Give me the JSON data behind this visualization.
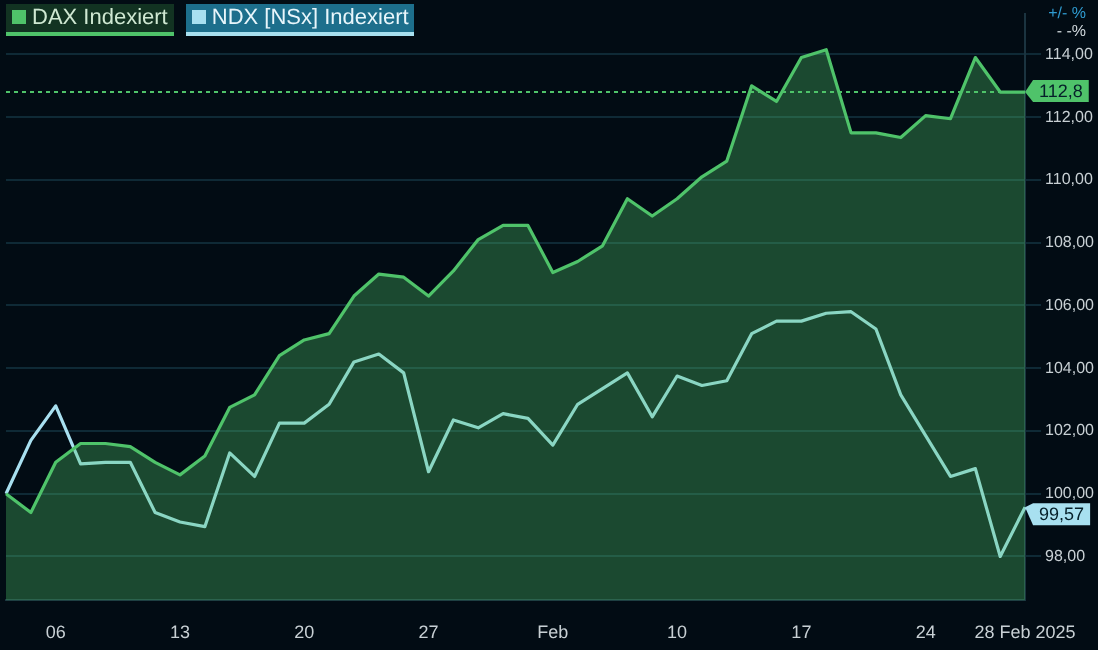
{
  "chart_data": {
    "type": "area",
    "categories": [
      null,
      null,
      "06",
      null,
      null,
      null,
      null,
      "13",
      null,
      null,
      null,
      null,
      "20",
      null,
      null,
      null,
      null,
      "27",
      null,
      null,
      null,
      null,
      "Feb",
      null,
      null,
      null,
      null,
      "10",
      null,
      null,
      null,
      null,
      "17",
      null,
      null,
      null,
      null,
      "24",
      null,
      null,
      null,
      "28 Feb 2025"
    ],
    "series": [
      {
        "name": "DAX  Indexiert",
        "type": "area",
        "color": "#4fc36a",
        "values": [
          100.0,
          99.4,
          101.0,
          101.6,
          101.6,
          101.5,
          101.0,
          100.6,
          101.2,
          102.75,
          103.15,
          104.4,
          104.9,
          105.1,
          106.3,
          107.0,
          106.9,
          106.3,
          107.1,
          108.1,
          108.55,
          108.55,
          107.05,
          107.4,
          107.9,
          109.4,
          108.85,
          109.4,
          110.1,
          110.6,
          113.0,
          112.5,
          113.9,
          114.15,
          111.5,
          111.5,
          111.35,
          112.05,
          111.95,
          113.9,
          112.8,
          112.8
        ],
        "value_labels": [
          null,
          null,
          null,
          null,
          null,
          null,
          null,
          null,
          null,
          null,
          null,
          null,
          null,
          null,
          null,
          null,
          null,
          null,
          null,
          null,
          null,
          null,
          null,
          null,
          null,
          null,
          null,
          null,
          null,
          null,
          null,
          null,
          null,
          null,
          null,
          null,
          null,
          null,
          null,
          null,
          null,
          "112,8"
        ]
      },
      {
        "name": "NDX [NSx] Indexiert",
        "type": "line",
        "color": "#a8e0f0",
        "values": [
          100.0,
          101.7,
          102.8,
          100.95,
          101.0,
          101.0,
          99.4,
          99.1,
          98.95,
          101.3,
          100.55,
          102.25,
          102.25,
          102.85,
          104.2,
          104.45,
          103.85,
          100.7,
          102.35,
          102.1,
          102.55,
          102.4,
          101.55,
          102.85,
          103.35,
          103.85,
          102.45,
          103.75,
          103.45,
          103.6,
          105.1,
          105.5,
          105.5,
          105.75,
          105.8,
          105.25,
          103.15,
          101.85,
          100.55,
          100.8,
          98.0,
          99.57
        ],
        "value_labels": [
          null,
          null,
          null,
          null,
          null,
          null,
          null,
          null,
          null,
          null,
          null,
          null,
          null,
          null,
          null,
          null,
          null,
          null,
          null,
          null,
          null,
          null,
          null,
          null,
          null,
          null,
          null,
          null,
          null,
          null,
          null,
          null,
          null,
          null,
          null,
          null,
          null,
          null,
          null,
          null,
          null,
          "99,57"
        ]
      }
    ],
    "ylim": [
      96.6,
      115.3
    ],
    "yticks": [
      {
        "value": 98,
        "label": "98,00"
      },
      {
        "value": 100,
        "label": "100,00"
      },
      {
        "value": 102,
        "label": "102,00"
      },
      {
        "value": 104,
        "label": "104,00"
      },
      {
        "value": 106,
        "label": "106,00"
      },
      {
        "value": 108,
        "label": "108,00"
      },
      {
        "value": 110,
        "label": "110,00"
      },
      {
        "value": 112,
        "label": "112,00"
      },
      {
        "value": 114,
        "label": "114,00"
      }
    ],
    "ref_lines": [
      {
        "axis": "y",
        "value": 112.8,
        "color": "#4fc36a",
        "line_style": "dotted"
      }
    ],
    "annotations": [
      "+/- %",
      "-  -%"
    ],
    "grid": "y",
    "legend": "top left",
    "marker": "none",
    "line_style": "solid"
  }
}
